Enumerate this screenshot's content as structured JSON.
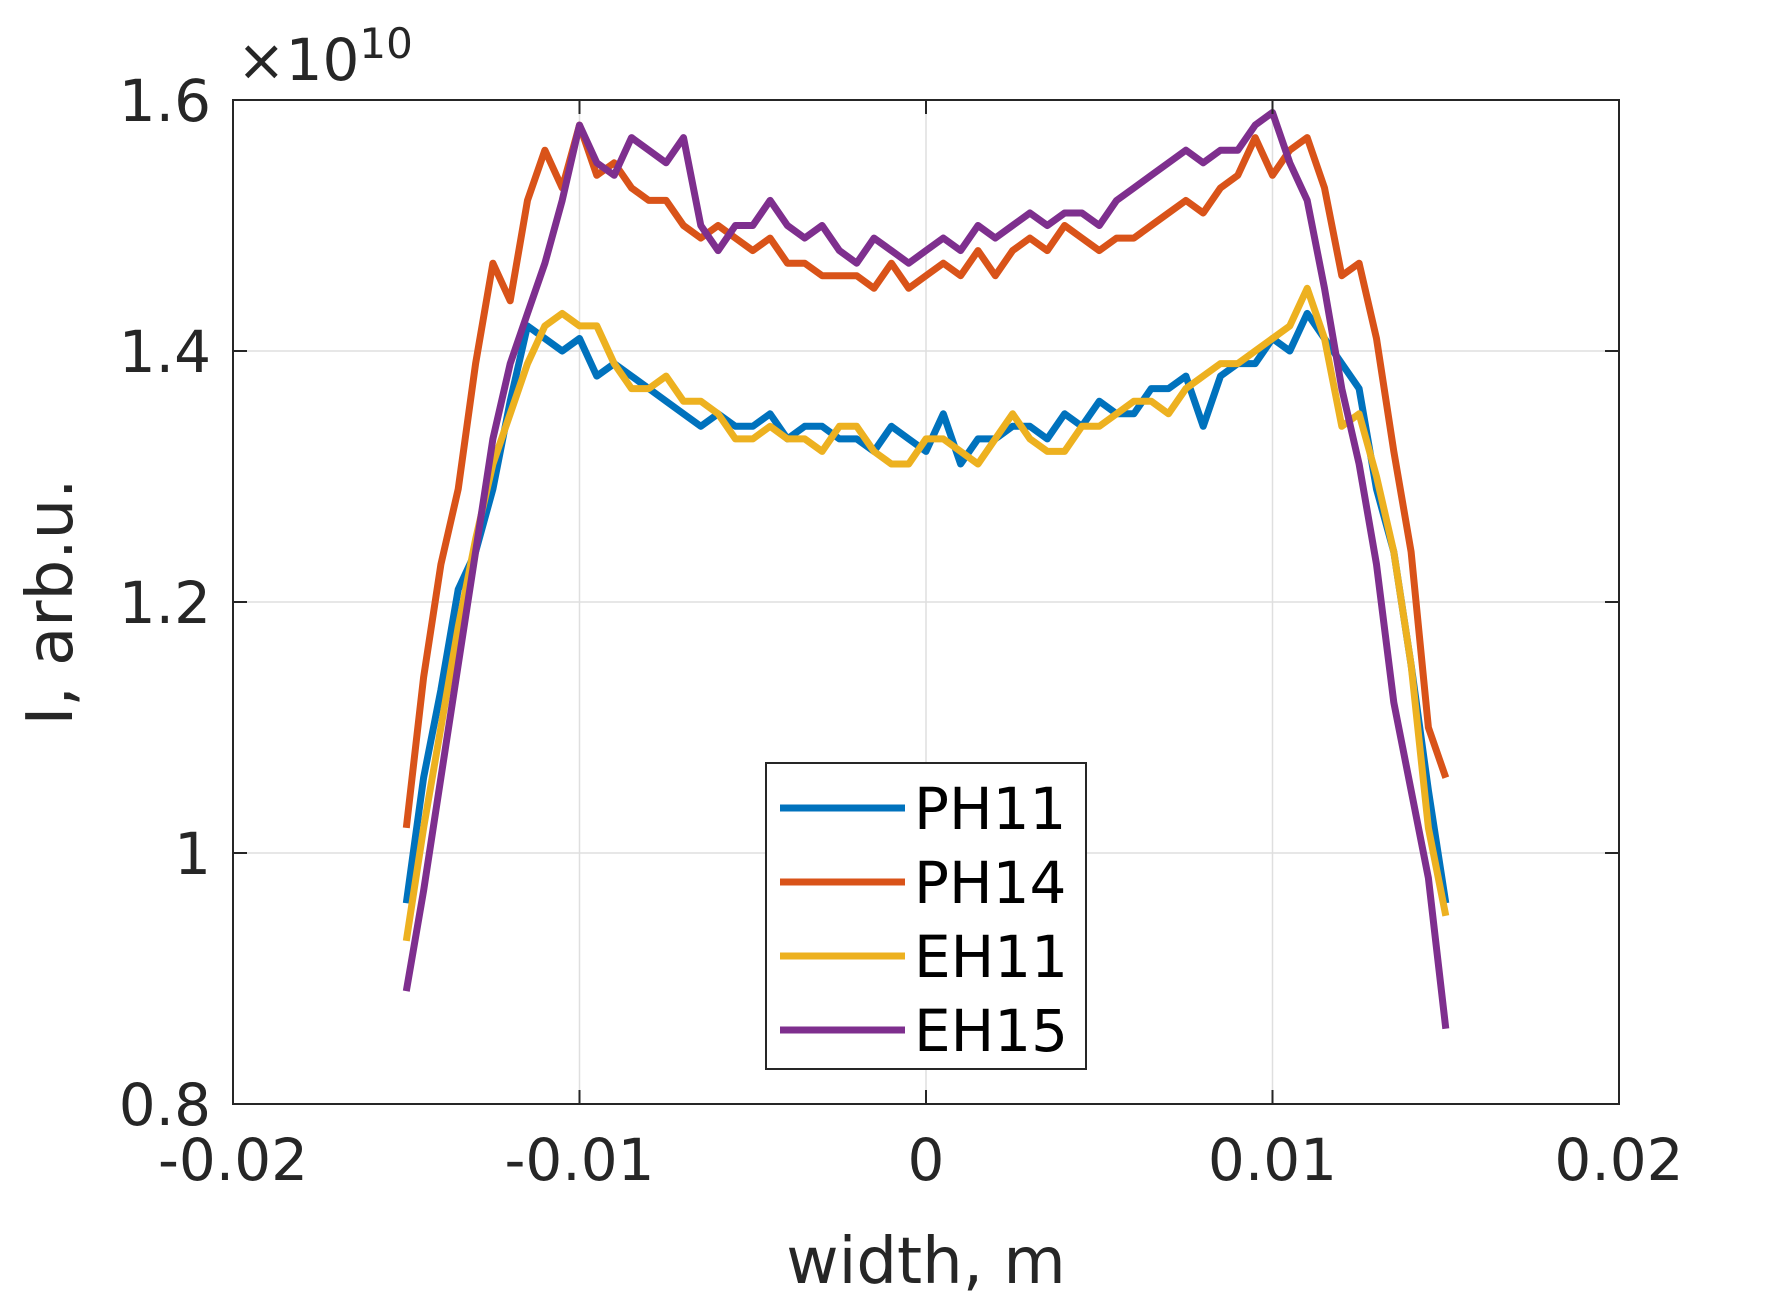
{
  "chart_data": {
    "type": "line",
    "xlabel": "width, m",
    "ylabel": "I, arb.u.",
    "y_exponent_label": "×10",
    "y_exponent_power": "10",
    "xlim": [
      -0.02,
      0.02
    ],
    "ylim": [
      0.8,
      1.6
    ],
    "xticks": [
      -0.02,
      -0.01,
      0,
      0.01,
      0.02
    ],
    "xtick_labels": [
      "-0.02",
      "-0.01",
      "0",
      "0.01",
      "0.02"
    ],
    "yticks": [
      0.8,
      1.0,
      1.2,
      1.4,
      1.6
    ],
    "ytick_labels": [
      "0.8",
      "1",
      "1.2",
      "1.4",
      "1.6"
    ],
    "grid": true,
    "legend_position": "bottom-center",
    "series": [
      {
        "name": "PH11",
        "color": "#0072BD",
        "x": [
          -0.015,
          -0.0145,
          -0.014,
          -0.0135,
          -0.013,
          -0.0125,
          -0.012,
          -0.0115,
          -0.011,
          -0.0105,
          -0.01,
          -0.0095,
          -0.009,
          -0.0085,
          -0.008,
          -0.0075,
          -0.007,
          -0.0065,
          -0.006,
          -0.0055,
          -0.005,
          -0.0045,
          -0.004,
          -0.0035,
          -0.003,
          -0.0025,
          -0.002,
          -0.0015,
          -0.001,
          -0.0005,
          0,
          0.0005,
          0.001,
          0.0015,
          0.002,
          0.0025,
          0.003,
          0.0035,
          0.004,
          0.0045,
          0.005,
          0.0055,
          0.006,
          0.0065,
          0.007,
          0.0075,
          0.008,
          0.0085,
          0.009,
          0.0095,
          0.01,
          0.0105,
          0.011,
          0.0115,
          0.012,
          0.0125,
          0.013,
          0.0135,
          0.014,
          0.0145,
          0.015
        ],
        "y": [
          0.96,
          1.06,
          1.13,
          1.21,
          1.24,
          1.29,
          1.36,
          1.42,
          1.41,
          1.4,
          1.41,
          1.38,
          1.39,
          1.38,
          1.37,
          1.36,
          1.35,
          1.34,
          1.35,
          1.34,
          1.34,
          1.35,
          1.33,
          1.34,
          1.34,
          1.33,
          1.33,
          1.32,
          1.34,
          1.33,
          1.32,
          1.35,
          1.31,
          1.33,
          1.33,
          1.34,
          1.34,
          1.33,
          1.35,
          1.34,
          1.36,
          1.35,
          1.35,
          1.37,
          1.37,
          1.38,
          1.34,
          1.38,
          1.39,
          1.39,
          1.41,
          1.4,
          1.43,
          1.41,
          1.39,
          1.37,
          1.29,
          1.24,
          1.15,
          1.05,
          0.96
        ]
      },
      {
        "name": "PH14",
        "color": "#D95319",
        "x": [
          -0.015,
          -0.0145,
          -0.014,
          -0.0135,
          -0.013,
          -0.0125,
          -0.012,
          -0.0115,
          -0.011,
          -0.0105,
          -0.01,
          -0.0095,
          -0.009,
          -0.0085,
          -0.008,
          -0.0075,
          -0.007,
          -0.0065,
          -0.006,
          -0.0055,
          -0.005,
          -0.0045,
          -0.004,
          -0.0035,
          -0.003,
          -0.0025,
          -0.002,
          -0.0015,
          -0.001,
          -0.0005,
          0,
          0.0005,
          0.001,
          0.0015,
          0.002,
          0.0025,
          0.003,
          0.0035,
          0.004,
          0.0045,
          0.005,
          0.0055,
          0.006,
          0.0065,
          0.007,
          0.0075,
          0.008,
          0.0085,
          0.009,
          0.0095,
          0.01,
          0.0105,
          0.011,
          0.0115,
          0.012,
          0.0125,
          0.013,
          0.0135,
          0.014,
          0.0145,
          0.015
        ],
        "y": [
          1.02,
          1.14,
          1.23,
          1.29,
          1.39,
          1.47,
          1.44,
          1.52,
          1.56,
          1.53,
          1.58,
          1.54,
          1.55,
          1.53,
          1.52,
          1.52,
          1.5,
          1.49,
          1.5,
          1.49,
          1.48,
          1.49,
          1.47,
          1.47,
          1.46,
          1.46,
          1.46,
          1.45,
          1.47,
          1.45,
          1.46,
          1.47,
          1.46,
          1.48,
          1.46,
          1.48,
          1.49,
          1.48,
          1.5,
          1.49,
          1.48,
          1.49,
          1.49,
          1.5,
          1.51,
          1.52,
          1.51,
          1.53,
          1.54,
          1.57,
          1.54,
          1.56,
          1.57,
          1.53,
          1.46,
          1.47,
          1.41,
          1.32,
          1.24,
          1.1,
          1.06
        ]
      },
      {
        "name": "EH11",
        "color": "#EDB120",
        "x": [
          -0.015,
          -0.0145,
          -0.014,
          -0.0135,
          -0.013,
          -0.0125,
          -0.012,
          -0.0115,
          -0.011,
          -0.0105,
          -0.01,
          -0.0095,
          -0.009,
          -0.0085,
          -0.008,
          -0.0075,
          -0.007,
          -0.0065,
          -0.006,
          -0.0055,
          -0.005,
          -0.0045,
          -0.004,
          -0.0035,
          -0.003,
          -0.0025,
          -0.002,
          -0.0015,
          -0.001,
          -0.0005,
          0,
          0.0005,
          0.001,
          0.0015,
          0.002,
          0.0025,
          0.003,
          0.0035,
          0.004,
          0.0045,
          0.005,
          0.0055,
          0.006,
          0.0065,
          0.007,
          0.0075,
          0.008,
          0.0085,
          0.009,
          0.0095,
          0.01,
          0.0105,
          0.011,
          0.0115,
          0.012,
          0.0125,
          0.013,
          0.0135,
          0.014,
          0.0145,
          0.015
        ],
        "y": [
          0.93,
          1.02,
          1.1,
          1.18,
          1.25,
          1.31,
          1.35,
          1.39,
          1.42,
          1.43,
          1.42,
          1.42,
          1.39,
          1.37,
          1.37,
          1.38,
          1.36,
          1.36,
          1.35,
          1.33,
          1.33,
          1.34,
          1.33,
          1.33,
          1.32,
          1.34,
          1.34,
          1.32,
          1.31,
          1.31,
          1.33,
          1.33,
          1.32,
          1.31,
          1.33,
          1.35,
          1.33,
          1.32,
          1.32,
          1.34,
          1.34,
          1.35,
          1.36,
          1.36,
          1.35,
          1.37,
          1.38,
          1.39,
          1.39,
          1.4,
          1.41,
          1.42,
          1.45,
          1.41,
          1.34,
          1.35,
          1.3,
          1.24,
          1.15,
          1.02,
          0.95
        ]
      },
      {
        "name": "EH15",
        "color": "#7E2F8E",
        "x": [
          -0.015,
          -0.0145,
          -0.014,
          -0.0135,
          -0.013,
          -0.0125,
          -0.012,
          -0.0115,
          -0.011,
          -0.0105,
          -0.01,
          -0.0095,
          -0.009,
          -0.0085,
          -0.008,
          -0.0075,
          -0.007,
          -0.0065,
          -0.006,
          -0.0055,
          -0.005,
          -0.0045,
          -0.004,
          -0.0035,
          -0.003,
          -0.0025,
          -0.002,
          -0.0015,
          -0.001,
          -0.0005,
          0,
          0.0005,
          0.001,
          0.0015,
          0.002,
          0.0025,
          0.003,
          0.0035,
          0.004,
          0.0045,
          0.005,
          0.0055,
          0.006,
          0.0065,
          0.007,
          0.0075,
          0.008,
          0.0085,
          0.009,
          0.0095,
          0.01,
          0.0105,
          0.011,
          0.0115,
          0.012,
          0.0125,
          0.013,
          0.0135,
          0.014,
          0.0145,
          0.015
        ],
        "y": [
          0.89,
          0.97,
          1.06,
          1.15,
          1.24,
          1.33,
          1.39,
          1.43,
          1.47,
          1.52,
          1.58,
          1.55,
          1.54,
          1.57,
          1.56,
          1.55,
          1.57,
          1.5,
          1.48,
          1.5,
          1.5,
          1.52,
          1.5,
          1.49,
          1.5,
          1.48,
          1.47,
          1.49,
          1.48,
          1.47,
          1.48,
          1.49,
          1.48,
          1.5,
          1.49,
          1.5,
          1.51,
          1.5,
          1.51,
          1.51,
          1.5,
          1.52,
          1.53,
          1.54,
          1.55,
          1.56,
          1.55,
          1.56,
          1.56,
          1.58,
          1.59,
          1.55,
          1.52,
          1.45,
          1.37,
          1.31,
          1.23,
          1.12,
          1.05,
          0.98,
          0.86
        ]
      }
    ]
  }
}
